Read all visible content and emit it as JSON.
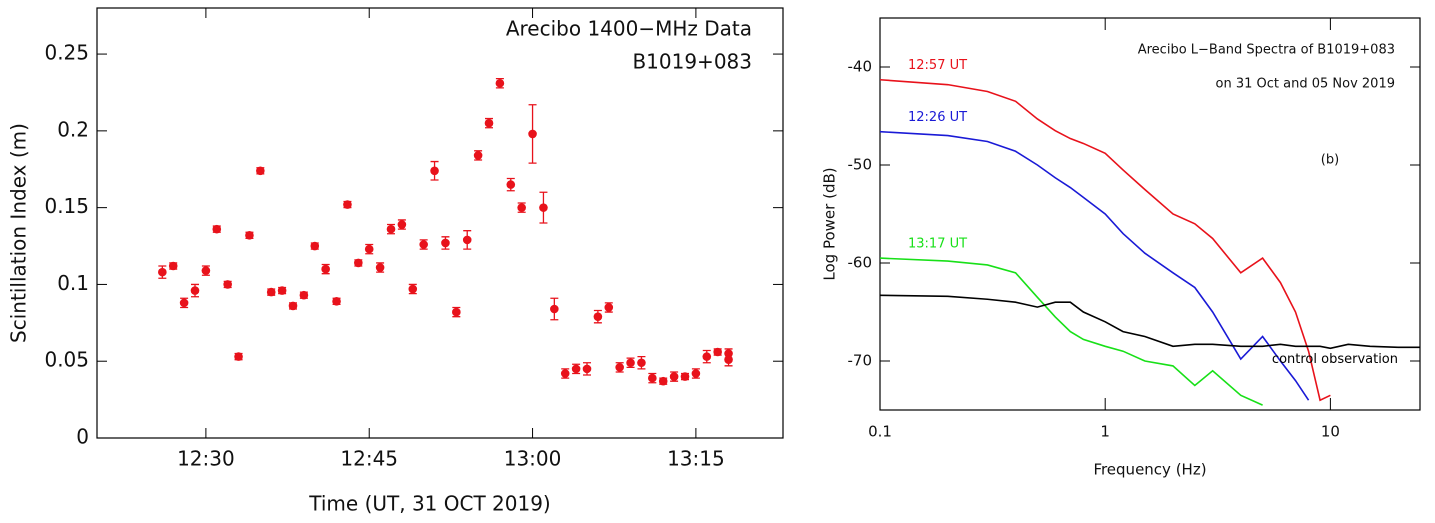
{
  "chart_data": [
    {
      "type": "scatter",
      "annotations": [
        "Arecibo 1400−MHz Data",
        "B1019+083"
      ],
      "xlabel": "Time (UT, 31 OCT 2019)",
      "ylabel": "Scintillation Index (m)",
      "color": "#e8121b",
      "x": [
        "12:26",
        "12:27",
        "12:28",
        "12:29",
        "12:30",
        "12:31",
        "12:32",
        "12:33",
        "12:34",
        "12:35",
        "12:36",
        "12:37",
        "12:38",
        "12:39",
        "12:40",
        "12:41",
        "12:42",
        "12:43",
        "12:44",
        "12:45",
        "12:46",
        "12:47",
        "12:48",
        "12:49",
        "12:50",
        "12:51",
        "12:52",
        "12:53",
        "12:54",
        "12:55",
        "12:56",
        "12:57",
        "12:58",
        "12:59",
        "13:00",
        "13:01",
        "13:02",
        "13:03",
        "13:04",
        "13:05",
        "13:06",
        "13:07",
        "13:08",
        "13:09",
        "13:10",
        "13:11",
        "13:12",
        "13:13",
        "13:14",
        "13:15",
        "13:16",
        "13:17",
        "13:18",
        "13:18"
      ],
      "values": [
        0.108,
        0.112,
        0.088,
        0.096,
        0.109,
        0.136,
        0.1,
        0.053,
        0.132,
        0.174,
        0.095,
        0.096,
        0.086,
        0.093,
        0.125,
        0.11,
        0.089,
        0.152,
        0.114,
        0.123,
        0.111,
        0.136,
        0.139,
        0.097,
        0.126,
        0.174,
        0.127,
        0.082,
        0.129,
        0.184,
        0.205,
        0.231,
        0.165,
        0.15,
        0.198,
        0.15,
        0.084,
        0.042,
        0.045,
        0.045,
        0.079,
        0.085,
        0.046,
        0.049,
        0.049,
        0.039,
        0.037,
        0.04,
        0.04,
        0.042,
        0.053,
        0.056,
        0.055,
        0.051
      ],
      "errors": [
        0.004,
        0.002,
        0.003,
        0.004,
        0.003,
        0.002,
        0.002,
        0.002,
        0.002,
        0.002,
        0.002,
        0.002,
        0.002,
        0.002,
        0.002,
        0.003,
        0.002,
        0.002,
        0.002,
        0.003,
        0.003,
        0.003,
        0.003,
        0.003,
        0.003,
        0.006,
        0.004,
        0.003,
        0.006,
        0.003,
        0.003,
        0.003,
        0.004,
        0.003,
        0.019,
        0.01,
        0.007,
        0.003,
        0.003,
        0.004,
        0.004,
        0.003,
        0.003,
        0.003,
        0.004,
        0.003,
        0.002,
        0.003,
        0.002,
        0.003,
        0.004,
        0.002,
        0.003,
        0.004
      ],
      "xlim": [
        "12:20",
        "13:23"
      ],
      "xticks": [
        "12:30",
        "12:45",
        "13:00",
        "13:15"
      ],
      "ylim": [
        0,
        0.28
      ],
      "yticks": [
        0,
        0.05,
        0.1,
        0.15,
        0.2,
        0.25
      ]
    },
    {
      "type": "line",
      "annotations": [
        "Arecibo L−Band Spectra of B1019+083",
        "on 31 Oct and 05 Nov 2019",
        "(b)"
      ],
      "xlabel": "Frequency (Hz)",
      "ylabel": "Log Power (dB)",
      "log_x": true,
      "x": [
        0.1,
        0.2,
        0.3,
        0.4,
        0.5,
        0.6,
        0.7,
        0.8,
        1,
        1.2,
        1.5,
        2,
        2.5,
        3,
        4,
        5,
        6,
        7,
        8,
        9,
        10,
        12,
        15,
        20,
        25
      ],
      "series": [
        {
          "name": "12:57 UT",
          "color": "#e8121b",
          "values": [
            -41.3,
            -41.8,
            -42.5,
            -43.5,
            -45.3,
            -46.5,
            -47.3,
            -47.8,
            -48.8,
            -50.5,
            -52.5,
            -55,
            -56,
            -57.5,
            -61,
            -59.5,
            -62,
            -65,
            -69,
            -74,
            -73.5,
            null,
            null,
            null,
            null
          ]
        },
        {
          "name": "12:26 UT",
          "color": "#1a1ad6",
          "values": [
            -46.6,
            -47,
            -47.6,
            -48.6,
            -50,
            -51.3,
            -52.3,
            -53.3,
            -55,
            -57,
            -59,
            -61,
            -62.5,
            -65,
            -69.8,
            -67.5,
            -70,
            -72,
            -74,
            null,
            null,
            null,
            null,
            null,
            null
          ]
        },
        {
          "name": "13:17 UT",
          "color": "#18e018",
          "values": [
            -59.5,
            -59.8,
            -60.2,
            -61,
            -63.5,
            -65.5,
            -67,
            -67.8,
            -68.5,
            -69,
            -70,
            -70.5,
            -72.5,
            -71,
            -73.5,
            -74.5,
            null,
            null,
            null,
            null,
            null,
            null,
            null,
            null,
            null
          ]
        },
        {
          "name": "control observation",
          "color": "#000000",
          "values": [
            -63.3,
            -63.4,
            -63.7,
            -64,
            -64.5,
            -64,
            -64,
            -65,
            -66,
            -67,
            -67.5,
            -68.5,
            -68.3,
            -68.3,
            -68.5,
            -68.5,
            -68.3,
            -68.5,
            -68.5,
            -68.5,
            -68.7,
            -68.3,
            -68.5,
            -68.6,
            -68.6
          ]
        }
      ],
      "xlim": [
        0.1,
        25
      ],
      "xticks": [
        0.1,
        1,
        10
      ],
      "ylim": [
        -75,
        -35
      ],
      "yticks": [
        -40,
        -50,
        -60,
        -70
      ]
    }
  ]
}
